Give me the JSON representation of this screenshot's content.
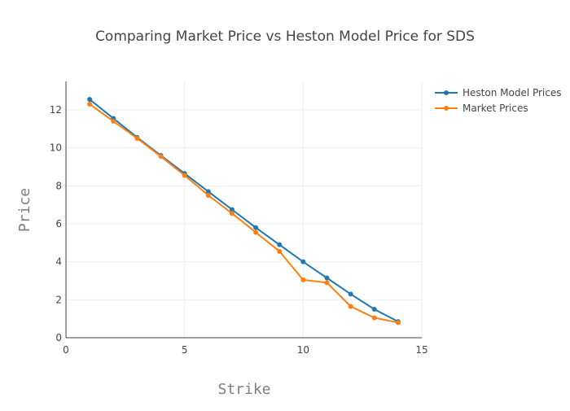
{
  "chart_data": {
    "type": "line",
    "title": "Comparing Market Price vs Heston Model Price for SDS",
    "xlabel": "Strike",
    "ylabel": "Price",
    "xlim": [
      0,
      15
    ],
    "ylim": [
      0,
      13.5
    ],
    "xticks": [
      0,
      5,
      10,
      15
    ],
    "yticks": [
      0,
      2,
      4,
      6,
      8,
      10,
      12
    ],
    "grid": true,
    "legend_position": "top-right",
    "x": [
      1,
      2,
      3,
      4,
      5,
      6,
      7,
      8,
      9,
      10,
      11,
      12,
      13,
      14
    ],
    "series": [
      {
        "name": "Heston Model Prices",
        "color": "#1f77b4",
        "values": [
          12.55,
          11.55,
          10.55,
          9.6,
          8.65,
          7.7,
          6.75,
          5.8,
          4.9,
          4.0,
          3.15,
          2.3,
          1.5,
          0.85
        ]
      },
      {
        "name": "Market Prices",
        "color": "#ff7f0e",
        "values": [
          12.3,
          11.4,
          10.5,
          9.55,
          8.55,
          7.5,
          6.55,
          5.55,
          4.55,
          3.05,
          2.9,
          1.65,
          1.05,
          0.8
        ]
      }
    ]
  }
}
